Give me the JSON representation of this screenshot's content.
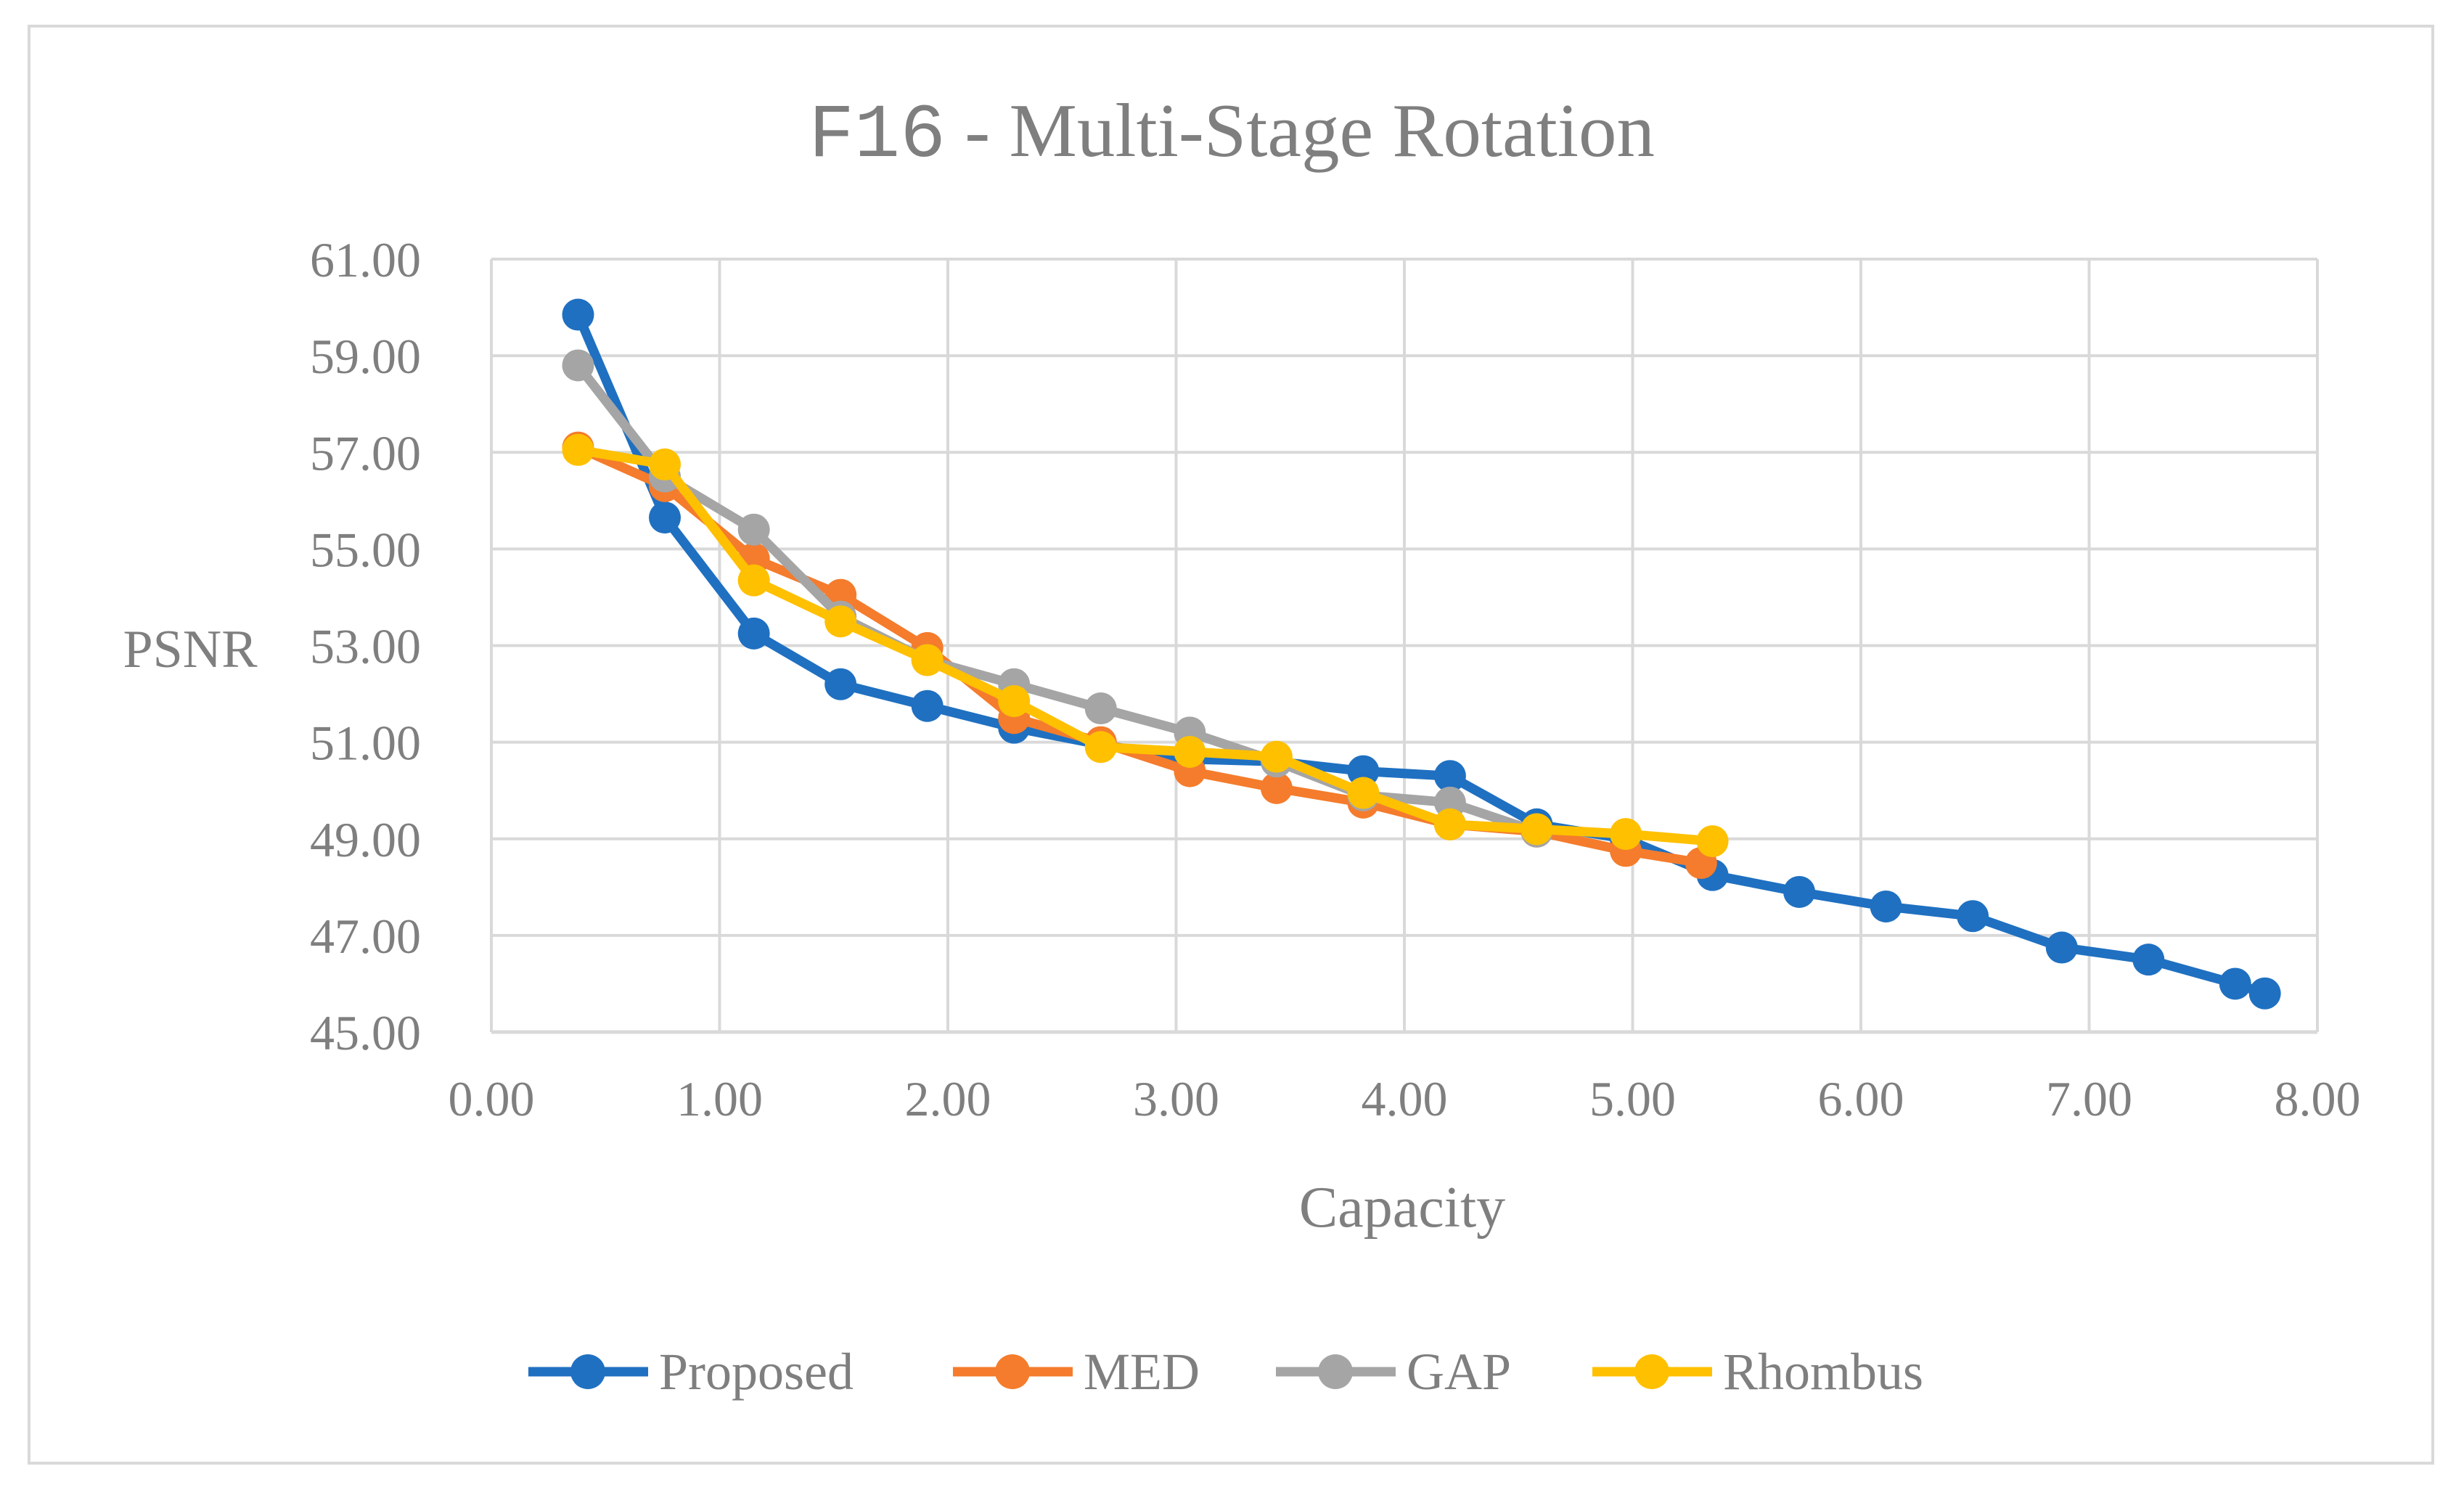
{
  "chart_data": {
    "type": "line",
    "title_prefix": "F16",
    "title_suffix": " - Multi-Stage Rotation",
    "xlabel": "Capacity",
    "ylabel": "PSNR",
    "xlim": [
      0,
      8
    ],
    "ylim": [
      45,
      61
    ],
    "x_ticks": [
      "0.00",
      "1.00",
      "2.00",
      "3.00",
      "4.00",
      "5.00",
      "6.00",
      "7.00",
      "8.00"
    ],
    "y_ticks": [
      "45.00",
      "47.00",
      "49.00",
      "51.00",
      "53.00",
      "55.00",
      "57.00",
      "59.00",
      "61.00"
    ],
    "x_tick_values": [
      0,
      1,
      2,
      3,
      4,
      5,
      6,
      7,
      8
    ],
    "y_tick_values": [
      45,
      47,
      49,
      51,
      53,
      55,
      57,
      59,
      61
    ],
    "grid": true,
    "legend_position": "bottom",
    "series": [
      {
        "name": "Proposed",
        "color": "#1f70c1",
        "x": [
          0.38,
          0.76,
          1.15,
          1.53,
          1.91,
          2.29,
          2.67,
          3.06,
          3.44,
          3.82,
          4.2,
          4.58,
          4.97,
          5.35,
          5.73,
          6.11,
          6.49,
          6.88,
          7.26,
          7.64,
          7.77
        ],
        "y": [
          59.85,
          55.65,
          53.25,
          52.2,
          51.75,
          51.3,
          50.95,
          50.65,
          50.6,
          50.4,
          50.3,
          49.3,
          49.0,
          48.25,
          47.9,
          47.6,
          47.4,
          46.75,
          46.5,
          46.0,
          45.8
        ]
      },
      {
        "name": "MED",
        "color": "#f47c2c",
        "x": [
          0.38,
          0.76,
          1.15,
          1.53,
          1.91,
          2.29,
          2.67,
          3.06,
          3.44,
          3.82,
          4.2,
          4.58,
          4.97,
          5.3
        ],
        "y": [
          57.1,
          56.3,
          54.8,
          54.05,
          52.95,
          51.5,
          51.0,
          50.4,
          50.05,
          49.75,
          49.3,
          49.15,
          48.75,
          48.5
        ]
      },
      {
        "name": "GAP",
        "color": "#a5a5a5",
        "x": [
          0.38,
          0.76,
          1.15,
          1.53,
          1.91,
          2.29,
          2.67,
          3.06,
          3.44,
          3.82,
          4.2,
          4.58
        ],
        "y": [
          58.8,
          56.5,
          55.4,
          53.6,
          52.7,
          52.2,
          51.7,
          51.2,
          50.6,
          49.9,
          49.75,
          49.15
        ]
      },
      {
        "name": "Rhombus",
        "color": "#ffc000",
        "x": [
          0.38,
          0.76,
          1.15,
          1.53,
          1.91,
          2.29,
          2.67,
          3.06,
          3.44,
          3.82,
          4.2,
          4.58,
          4.97,
          5.35
        ],
        "y": [
          57.05,
          56.75,
          54.35,
          53.5,
          52.7,
          51.85,
          50.9,
          50.8,
          50.7,
          49.95,
          49.3,
          49.2,
          49.1,
          48.95
        ]
      }
    ]
  }
}
